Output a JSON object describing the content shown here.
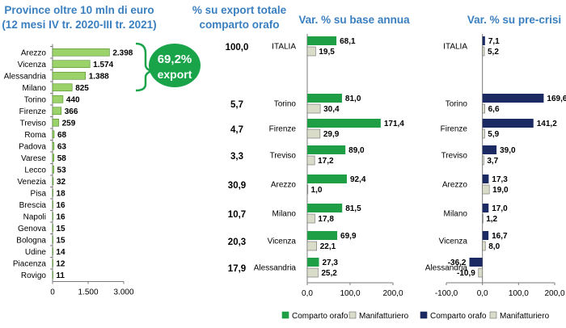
{
  "colors": {
    "title": "#3a7fc0",
    "light_green": "#9bd36a",
    "green": "#1e9e45",
    "gray_fill": "#d8dcc8",
    "navy": "#1b2a63",
    "badge": "#19a44a",
    "axis": "#7a7a7a"
  },
  "panel1": {
    "title_line1": "Province oltre 10 mln di euro",
    "title_line2": "(12 mesi IV tr. 2020-III tr. 2021)",
    "badge_value": "69,2%",
    "badge_label": "export"
  },
  "panel2": {
    "title_line1": "% su export totale",
    "title_line2": "comparto orafo"
  },
  "panel3": {
    "title": "Var. % su base annua"
  },
  "panel4": {
    "title": "Var. % su pre-crisi"
  },
  "chart_data": [
    {
      "type": "bar",
      "orientation": "horizontal",
      "title": "Province oltre 10 mln di euro (12 mesi IV tr. 2020-III tr. 2021)",
      "categories": [
        "Arezzo",
        "Vicenza",
        "Alessandria",
        "Milano",
        "Torino",
        "Firenze",
        "Treviso",
        "Roma",
        "Padova",
        "Varese",
        "Lecco",
        "Venezia",
        "Pisa",
        "Brescia",
        "Napoli",
        "Genova",
        "Bologna",
        "Udine",
        "Piacenza",
        "Rovigo"
      ],
      "values": [
        2398,
        1574,
        1388,
        825,
        440,
        366,
        259,
        68,
        63,
        58,
        53,
        32,
        18,
        16,
        16,
        15,
        15,
        14,
        12,
        11
      ],
      "value_labels": [
        "2.398",
        "1.574",
        "1.388",
        "825",
        "440",
        "366",
        "259",
        "68",
        "63",
        "58",
        "53",
        "32",
        "18",
        "16",
        "16",
        "15",
        "15",
        "14",
        "12",
        "11"
      ],
      "xlim": [
        0,
        3000
      ],
      "xticks": [
        "0",
        "1.500",
        "3.000"
      ]
    },
    {
      "type": "table",
      "title": "% su export totale comparto orafo",
      "categories": [
        "ITALIA",
        "Torino",
        "Firenze",
        "Treviso",
        "Arezzo",
        "Milano",
        "Vicenza",
        "Alessandria"
      ],
      "values": [
        "100,0",
        "5,7",
        "4,7",
        "3,3",
        "30,9",
        "10,7",
        "20,3",
        "17,9"
      ]
    },
    {
      "type": "bar",
      "orientation": "horizontal",
      "title": "Var. % su base annua",
      "categories": [
        "ITALIA",
        "Torino",
        "Firenze",
        "Treviso",
        "Arezzo",
        "Milano",
        "Vicenza",
        "Alessandria"
      ],
      "series": [
        {
          "name": "Comparto orafo",
          "values": [
            68.1,
            81.0,
            171.4,
            89.0,
            92.4,
            81.5,
            69.9,
            27.3
          ],
          "labels": [
            "68,1",
            "81,0",
            "171,4",
            "89,0",
            "92,4",
            "81,5",
            "69,9",
            "27,3"
          ]
        },
        {
          "name": "Manifatturiero",
          "values": [
            19.5,
            30.4,
            29.9,
            17.2,
            1.0,
            17.8,
            22.1,
            25.2
          ],
          "labels": [
            "19,5",
            "30,4",
            "29,9",
            "17,2",
            "1,0",
            "17,8",
            "22,1",
            "25,2"
          ]
        }
      ],
      "xlim": [
        0,
        200
      ],
      "xticks": [
        "0,0",
        "100,0",
        "200,0"
      ]
    },
    {
      "type": "bar",
      "orientation": "horizontal",
      "title": "Var. % su pre-crisi",
      "categories": [
        "ITALIA",
        "Torino",
        "Firenze",
        "Treviso",
        "Arezzo",
        "Milano",
        "Vicenza",
        "Alessandria"
      ],
      "series": [
        {
          "name": "Comparto orafo",
          "values": [
            7.1,
            169.6,
            141.2,
            39.0,
            17.3,
            17.0,
            16.7,
            -36.2
          ],
          "labels": [
            "7,1",
            "169,6",
            "141,2",
            "39,0",
            "17,3",
            "17,0",
            "16,7",
            "-36,2"
          ]
        },
        {
          "name": "Manifatturiero",
          "values": [
            5.2,
            6.6,
            5.9,
            3.7,
            19.0,
            1.2,
            8.0,
            -10.9
          ],
          "labels": [
            "5,2",
            "6,6",
            "5,9",
            "3,7",
            "19,0",
            "1,2",
            "8,0",
            "-10,9"
          ]
        }
      ],
      "xlim": [
        -100,
        200
      ],
      "xticks": [
        "-100,0",
        "0,0",
        "100,0",
        "200,0"
      ]
    }
  ]
}
